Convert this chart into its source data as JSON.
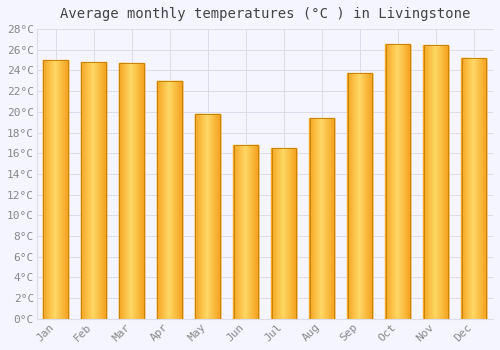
{
  "title": "Average monthly temperatures (°C ) in Livingstone",
  "months": [
    "Jan",
    "Feb",
    "Mar",
    "Apr",
    "May",
    "Jun",
    "Jul",
    "Aug",
    "Sep",
    "Oct",
    "Nov",
    "Dec"
  ],
  "values": [
    25.0,
    24.8,
    24.7,
    23.0,
    19.8,
    16.8,
    16.5,
    19.4,
    23.8,
    26.6,
    26.5,
    25.2
  ],
  "bar_color_center": "#FFD966",
  "bar_color_edge": "#F5A623",
  "bar_border_color": "#C8820A",
  "ylim": [
    0,
    28
  ],
  "ytick_step": 2,
  "background_color": "#F5F5FF",
  "plot_bg_color": "#F5F5FF",
  "grid_color": "#DCDCEC",
  "title_fontsize": 10,
  "tick_fontsize": 8,
  "tick_label_color": "#888888",
  "title_color": "#444444",
  "bar_width": 0.65
}
